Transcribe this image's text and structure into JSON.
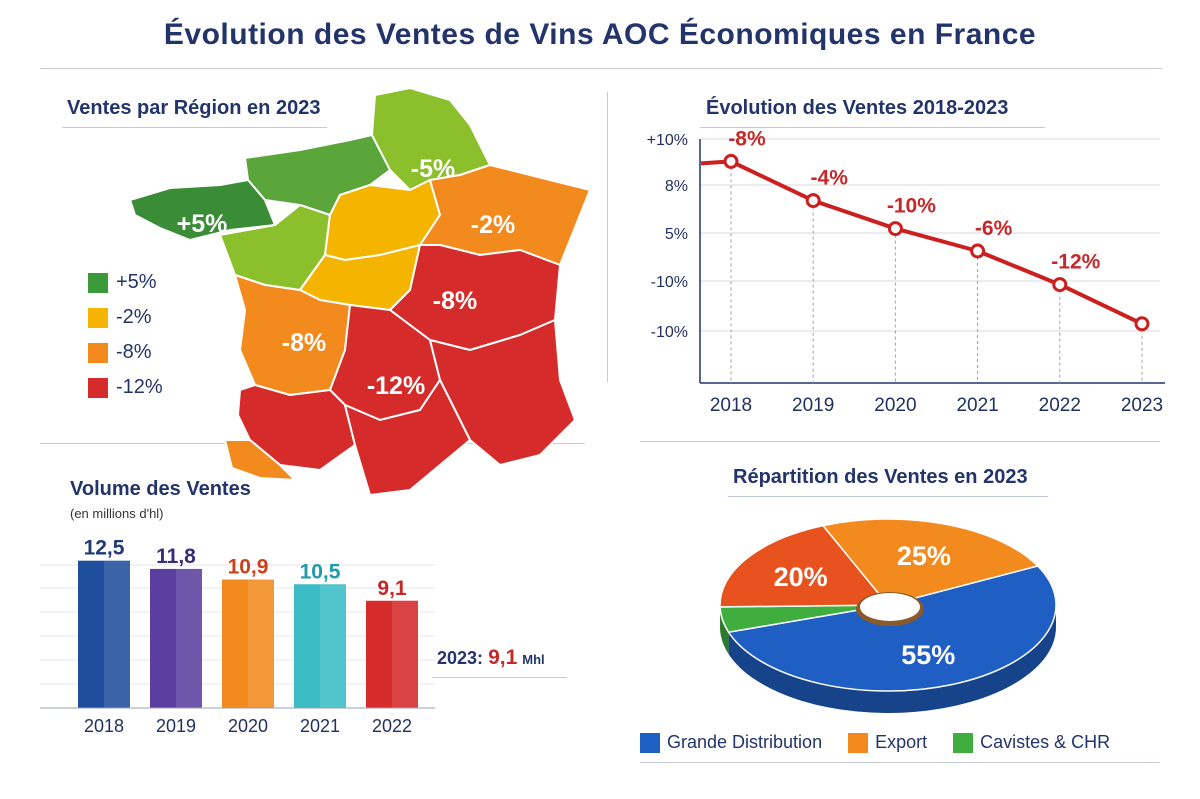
{
  "page_title": "Évolution des Ventes de Vins AOC Économiques en France",
  "map_panel": {
    "title": "Ventes par Région en 2023",
    "region_labels": [
      "+5%",
      "-5%",
      "-2%",
      "-8%",
      "-8%",
      "-12%"
    ],
    "legend": [
      {
        "label": "+5%",
        "color": "#3a9a3a"
      },
      {
        "label": "-2%",
        "color": "#f5b400"
      },
      {
        "label": "-8%",
        "color": "#f28a1e"
      },
      {
        "label": "-12%",
        "color": "#d62b2b"
      }
    ]
  },
  "line_panel": {
    "title": "Évolution des Ventes 2018-2023"
  },
  "bar_panel": {
    "title": "Volume des Ventes",
    "subtitle": "(en millions d'hl)",
    "summary_prefix": "2023:",
    "summary_value": "9,1",
    "summary_unit": "Mhl"
  },
  "pie_panel": {
    "title": "Répartition des Ventes en 2023",
    "legend": [
      {
        "label": "Grande Distribution",
        "color": "#1f5fc4"
      },
      {
        "label": "Export",
        "color": "#f28a1e"
      },
      {
        "label": "Cavistes & CHR",
        "color": "#3fae3f"
      }
    ]
  },
  "chart_data": [
    {
      "type": "map",
      "title": "Ventes par Région en 2023",
      "regions": [
        {
          "label": "+5%",
          "color": "#3f9a3a"
        },
        {
          "label": "-5%",
          "color": "#9cc62e"
        },
        {
          "label": "-2%",
          "color": "#f28a1e"
        },
        {
          "label": "-8%",
          "color": "#d62b2b"
        },
        {
          "label": "-8%",
          "color": "#f28a1e"
        },
        {
          "label": "-12%",
          "color": "#d62b2b"
        }
      ]
    },
    {
      "type": "line",
      "title": "Évolution des Ventes 2018-2023",
      "categories": [
        "2018",
        "2019",
        "2020",
        "2021",
        "2022",
        "2023"
      ],
      "y_ticks": [
        "+10%",
        "8%",
        "5%",
        "-10%",
        "-10%"
      ],
      "series": [
        {
          "values": [
            8,
            4.5,
            2,
            0,
            -3,
            -6.5
          ],
          "color": "#cc1f1f"
        }
      ],
      "point_labels": [
        "-8%",
        "-4%",
        "-10%",
        "-6%",
        "-12%"
      ],
      "grid": true
    },
    {
      "type": "bar",
      "title": "Volume des Ventes",
      "ylabel": "(en millions d'hl)",
      "categories": [
        "2018",
        "2019",
        "2020",
        "2021",
        "2022"
      ],
      "values": [
        12.5,
        11.8,
        10.9,
        10.5,
        9.1
      ],
      "value_labels": [
        "12,5",
        "11,8",
        "10,9",
        "10,5",
        "9,1"
      ],
      "colors": [
        "#1f4e9c",
        "#5a3fa0",
        "#f28a1e",
        "#3bbcc4",
        "#d62b2b"
      ],
      "label_colors": [
        "#1f3a75",
        "#3a2c7a",
        "#c9421c",
        "#1f9aa8",
        "#c62828"
      ],
      "grid": true
    },
    {
      "type": "pie",
      "title": "Répartition des Ventes en 2023",
      "slices": [
        {
          "label": "Grande Distribution",
          "value": 55,
          "text": "55%",
          "color": "#1f5fc4"
        },
        {
          "label": "Cavistes & CHR",
          "value": 5,
          "text": "",
          "color": "#3fae3f"
        },
        {
          "label": "Export",
          "value": 20,
          "text": "20%",
          "color": "#e8521e"
        },
        {
          "label": "Export",
          "value": 25,
          "text": "25%",
          "color": "#f28a1e"
        }
      ]
    }
  ]
}
